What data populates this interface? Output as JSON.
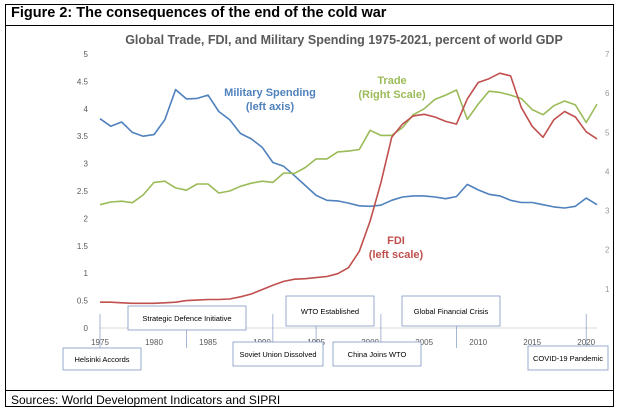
{
  "figure_title": "Figure 2: The consequences of the end of the cold war",
  "source_note": "Sources: World Development Indicators and SIPRI",
  "chart_data": {
    "type": "line",
    "title": "Global Trade, FDI, and Military Spending 1975-2021, percent of world GDP",
    "xlabel": "",
    "ylabel": "",
    "xlim": [
      1975,
      2021
    ],
    "x_ticks": [
      1975,
      1980,
      1985,
      1990,
      1995,
      2000,
      2005,
      2010,
      2015,
      2020
    ],
    "left_axis": {
      "ylim": [
        0,
        5
      ],
      "ticks": [
        "0",
        "0.5",
        "1",
        "1.5",
        "2",
        "2.5",
        "3",
        "3.5",
        "4",
        "4.5",
        "5"
      ]
    },
    "right_axis": {
      "ylim": [
        0,
        7
      ],
      "ticks": [
        "1",
        "2",
        "3",
        "4",
        "5",
        "6",
        "7"
      ]
    },
    "grid": false,
    "series": [
      {
        "name": "Military Spending",
        "label_lines": [
          "Military Spending",
          "(left axis)"
        ],
        "axis": "left",
        "color": "#4f81bd",
        "x": [
          1975,
          1976,
          1977,
          1978,
          1979,
          1980,
          1981,
          1982,
          1983,
          1984,
          1985,
          1986,
          1987,
          1988,
          1989,
          1990,
          1991,
          1992,
          1993,
          1994,
          1995,
          1996,
          1997,
          1998,
          1999,
          2000,
          2001,
          2002,
          2003,
          2004,
          2005,
          2006,
          2007,
          2008,
          2009,
          2010,
          2011,
          2012,
          2013,
          2014,
          2015,
          2016,
          2017,
          2018,
          2019,
          2020,
          2021
        ],
        "y": [
          3.82,
          3.68,
          3.76,
          3.57,
          3.5,
          3.53,
          3.8,
          4.35,
          4.18,
          4.19,
          4.25,
          3.95,
          3.8,
          3.55,
          3.45,
          3.3,
          3.02,
          2.95,
          2.78,
          2.6,
          2.42,
          2.33,
          2.32,
          2.28,
          2.23,
          2.22,
          2.24,
          2.33,
          2.39,
          2.41,
          2.41,
          2.39,
          2.36,
          2.4,
          2.62,
          2.52,
          2.44,
          2.41,
          2.33,
          2.29,
          2.29,
          2.25,
          2.21,
          2.19,
          2.22,
          2.37,
          2.25
        ]
      },
      {
        "name": "Trade",
        "label_lines": [
          "Trade",
          "(Right Scale)"
        ],
        "axis": "right",
        "color": "#9bbb59",
        "x": [
          1975,
          1976,
          1977,
          1978,
          1979,
          1980,
          1981,
          1982,
          1983,
          1984,
          1985,
          1986,
          1987,
          1988,
          1989,
          1990,
          1991,
          1992,
          1993,
          1994,
          1995,
          1996,
          1997,
          1998,
          1999,
          2000,
          2001,
          2002,
          2003,
          2004,
          2005,
          2006,
          2007,
          2008,
          2009,
          2010,
          2011,
          2012,
          2013,
          2014,
          2015,
          2016,
          2017,
          2018,
          2019,
          2020,
          2021
        ],
        "y": [
          3.15,
          3.22,
          3.24,
          3.2,
          3.4,
          3.72,
          3.75,
          3.58,
          3.52,
          3.68,
          3.68,
          3.45,
          3.5,
          3.62,
          3.7,
          3.75,
          3.72,
          3.96,
          3.95,
          4.1,
          4.32,
          4.32,
          4.5,
          4.52,
          4.56,
          5.05,
          4.92,
          4.92,
          5.12,
          5.45,
          5.6,
          5.84,
          5.95,
          6.08,
          5.33,
          5.72,
          6.05,
          6.02,
          5.95,
          5.86,
          5.58,
          5.45,
          5.68,
          5.8,
          5.7,
          5.25,
          5.72
        ]
      },
      {
        "name": "FDI",
        "label_lines": [
          "FDI",
          "(left scale)"
        ],
        "axis": "left",
        "color": "#c0504d",
        "x": [
          1975,
          1976,
          1977,
          1978,
          1979,
          1980,
          1981,
          1982,
          1983,
          1984,
          1985,
          1986,
          1987,
          1988,
          1989,
          1990,
          1991,
          1992,
          1993,
          1994,
          1995,
          1996,
          1997,
          1998,
          1999,
          2000,
          2001,
          2002,
          2003,
          2004,
          2005,
          2006,
          2007,
          2008,
          2009,
          2010,
          2011,
          2012,
          2013,
          2014,
          2015,
          2016,
          2017,
          2018,
          2019,
          2020,
          2021
        ],
        "y": [
          0.47,
          0.47,
          0.46,
          0.45,
          0.45,
          0.45,
          0.46,
          0.47,
          0.5,
          0.51,
          0.52,
          0.52,
          0.53,
          0.57,
          0.62,
          0.7,
          0.78,
          0.85,
          0.89,
          0.9,
          0.92,
          0.94,
          0.99,
          1.1,
          1.4,
          1.95,
          2.65,
          3.48,
          3.72,
          3.87,
          3.9,
          3.85,
          3.77,
          3.72,
          4.18,
          4.48,
          4.55,
          4.65,
          4.6,
          4.02,
          3.68,
          3.48,
          3.8,
          3.95,
          3.85,
          3.58,
          3.45
        ]
      }
    ],
    "annotations": [
      {
        "text": "Helsinki Accords",
        "year": 1975
      },
      {
        "text": "Strategic Defence Initiative",
        "year": 1983
      },
      {
        "text": "Soviet Union Dissolved",
        "year": 1991
      },
      {
        "text": "WTO Established",
        "year": 1995
      },
      {
        "text": "China Joins WTO",
        "year": 2001
      },
      {
        "text": "Global Financial Crisis",
        "year": 2008
      },
      {
        "text": "COVID-19 Pandemic",
        "year": 2020
      }
    ]
  }
}
